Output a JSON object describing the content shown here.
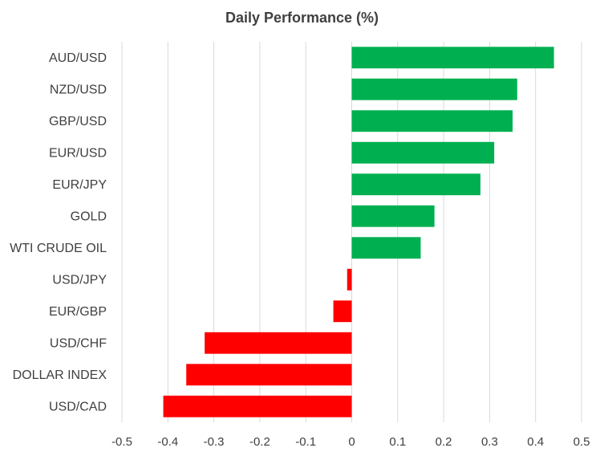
{
  "chart_data": {
    "type": "bar",
    "orientation": "horizontal",
    "title": "Daily Performance (%)",
    "xlabel": "",
    "ylabel": "",
    "xlim": [
      -0.5,
      0.5
    ],
    "x_ticks": [
      "-0.5",
      "-0.4",
      "-0.3",
      "-0.2",
      "-0.1",
      "0",
      "0.1",
      "0.2",
      "0.3",
      "0.4",
      "0.5"
    ],
    "x_tick_values": [
      -0.5,
      -0.4,
      -0.3,
      -0.2,
      -0.1,
      0,
      0.1,
      0.2,
      0.3,
      0.4,
      0.5
    ],
    "grid": "vertical",
    "legend": "none",
    "categories": [
      "AUD/USD",
      "NZD/USD",
      "GBP/USD",
      "EUR/USD",
      "EUR/JPY",
      "GOLD",
      "WTI CRUDE OIL",
      "USD/JPY",
      "EUR/GBP",
      "USD/CHF",
      "DOLLAR INDEX",
      "USD/CAD"
    ],
    "values": [
      0.44,
      0.36,
      0.35,
      0.31,
      0.28,
      0.18,
      0.15,
      -0.01,
      -0.04,
      -0.32,
      -0.36,
      -0.41
    ],
    "colors": {
      "positive": "#00b050",
      "negative": "#ff0000",
      "gridline": "#d9d9d9",
      "text": "#404040"
    }
  }
}
